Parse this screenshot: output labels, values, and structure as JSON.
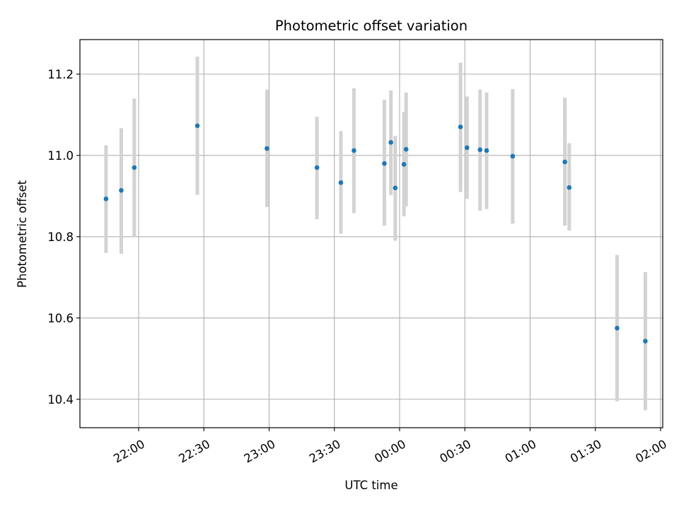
{
  "chart_data": {
    "type": "scatter",
    "title": "Photometric offset variation",
    "xlabel": "UTC time",
    "ylabel": "Photometric offset",
    "grid": true,
    "x_tick_labels": [
      "22:00",
      "22:30",
      "23:00",
      "23:30",
      "00:00",
      "00:30",
      "01:00",
      "01:30",
      "02:00"
    ],
    "y_tick_labels": [
      "10.4",
      "10.6",
      "10.8",
      "11.0",
      "11.2"
    ],
    "y_ticks": [
      10.4,
      10.6,
      10.8,
      11.0,
      11.2
    ],
    "ylim": [
      10.33,
      11.285
    ],
    "x_tick_times": [
      "22:00",
      "22:30",
      "23:00",
      "23:30",
      "00:00",
      "00:30",
      "01:00",
      "01:30",
      "02:00"
    ],
    "xlim": [
      "21:33",
      "02:01"
    ],
    "colors": {
      "point": "#1f77b4",
      "errorbar": "#d3d3d3",
      "grid": "#b0b0b0"
    },
    "points": [
      {
        "x": "21:45",
        "y": 10.893,
        "ylo": 10.76,
        "yhi": 11.025
      },
      {
        "x": "21:52",
        "y": 10.914,
        "ylo": 10.758,
        "yhi": 11.067
      },
      {
        "x": "21:58",
        "y": 10.97,
        "ylo": 10.8,
        "yhi": 11.14
      },
      {
        "x": "22:27",
        "y": 11.073,
        "ylo": 10.903,
        "yhi": 11.243
      },
      {
        "x": "22:59",
        "y": 11.017,
        "ylo": 10.873,
        "yhi": 11.162
      },
      {
        "x": "23:22",
        "y": 10.97,
        "ylo": 10.843,
        "yhi": 11.095
      },
      {
        "x": "23:33",
        "y": 10.933,
        "ylo": 10.807,
        "yhi": 11.06
      },
      {
        "x": "23:39",
        "y": 11.012,
        "ylo": 10.858,
        "yhi": 11.165
      },
      {
        "x": "23:53",
        "y": 10.98,
        "ylo": 10.827,
        "yhi": 11.137
      },
      {
        "x": "23:56",
        "y": 11.032,
        "ylo": 10.902,
        "yhi": 11.16
      },
      {
        "x": "23:58",
        "y": 10.92,
        "ylo": 10.79,
        "yhi": 11.048
      },
      {
        "x": "00:02",
        "y": 10.978,
        "ylo": 10.85,
        "yhi": 11.107
      },
      {
        "x": "00:03",
        "y": 11.015,
        "ylo": 10.875,
        "yhi": 11.155
      },
      {
        "x": "00:28",
        "y": 11.07,
        "ylo": 10.91,
        "yhi": 11.228
      },
      {
        "x": "00:31",
        "y": 11.019,
        "ylo": 10.893,
        "yhi": 11.145
      },
      {
        "x": "00:37",
        "y": 11.014,
        "ylo": 10.864,
        "yhi": 11.162
      },
      {
        "x": "00:40",
        "y": 11.012,
        "ylo": 10.868,
        "yhi": 11.155
      },
      {
        "x": "00:52",
        "y": 10.998,
        "ylo": 10.832,
        "yhi": 11.163
      },
      {
        "x": "01:16",
        "y": 10.984,
        "ylo": 10.827,
        "yhi": 11.142
      },
      {
        "x": "01:18",
        "y": 10.921,
        "ylo": 10.815,
        "yhi": 11.03
      },
      {
        "x": "01:40",
        "y": 10.575,
        "ylo": 10.395,
        "yhi": 10.755
      },
      {
        "x": "01:53",
        "y": 10.543,
        "ylo": 10.373,
        "yhi": 10.713
      }
    ]
  }
}
